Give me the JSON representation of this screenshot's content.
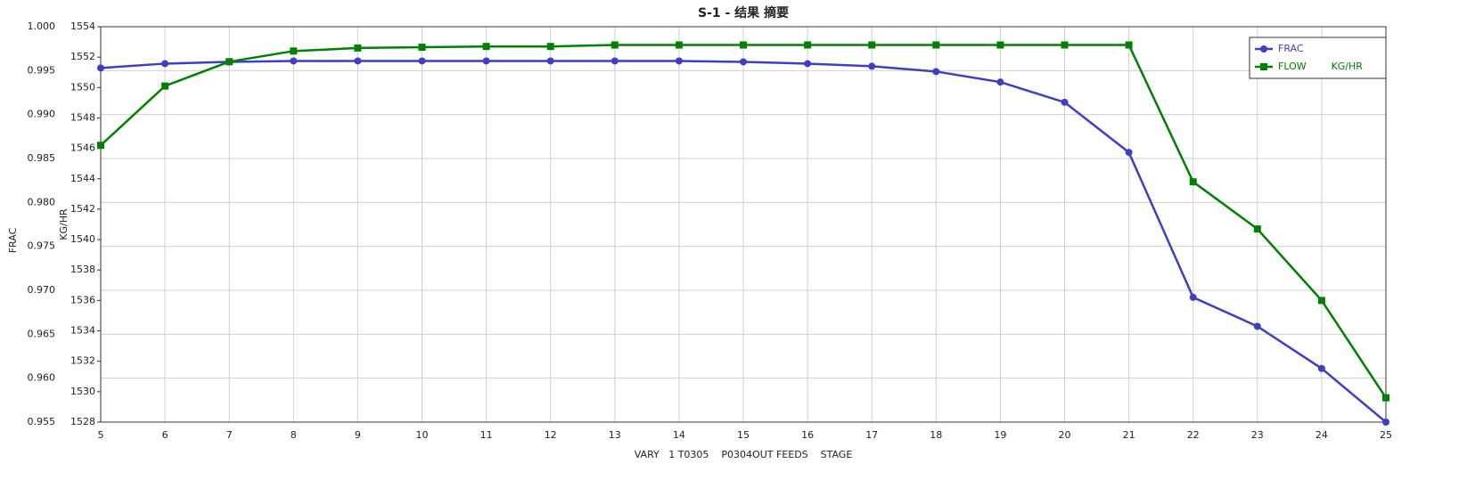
{
  "chart_data": {
    "type": "line",
    "title": "S-1 - 结果 摘要",
    "x_label": "VARY   1 T0305    P0304OUT FEEDS    STAGE",
    "y_label": "FRAC",
    "y2_label": "KG/HR",
    "x": [
      5,
      6,
      7,
      8,
      9,
      10,
      11,
      12,
      13,
      14,
      15,
      16,
      17,
      18,
      19,
      20,
      21,
      22,
      23,
      24,
      25
    ],
    "xlim": [
      5,
      25
    ],
    "xticks": [
      5,
      6,
      7,
      8,
      9,
      10,
      11,
      12,
      13,
      14,
      15,
      16,
      17,
      18,
      19,
      20,
      21,
      22,
      23,
      24,
      25
    ],
    "ylim": [
      0.955,
      1.0
    ],
    "yticks": [
      0.955,
      {
        "value": 0.96,
        "label": "0.960"
      },
      0.965,
      {
        "value": 0.97,
        "label": "0.970"
      },
      0.975,
      {
        "value": 0.98,
        "label": "0.980"
      },
      0.985,
      {
        "value": 0.99,
        "label": "0.990"
      },
      0.995,
      {
        "value": 1.0,
        "label": "1.000"
      }
    ],
    "y2lim": [
      1528,
      1554
    ],
    "y2ticks": [
      1528,
      1530,
      1532,
      1534,
      1536,
      1538,
      1540,
      1542,
      1544,
      1546,
      1548,
      1550,
      1552,
      1554
    ],
    "grid": true,
    "legend": "upper right",
    "series": [
      {
        "name": "FRAC",
        "color": "#3f3fbf",
        "marker": "circle",
        "values": [
          0.9953,
          0.9958,
          0.996,
          0.9961,
          0.9961,
          0.9961,
          0.9961,
          0.9961,
          0.9961,
          0.9961,
          0.996,
          0.9958,
          0.9955,
          0.9949,
          0.9937,
          0.9914,
          0.9857,
          0.9692,
          0.9659,
          0.9611,
          0.955
        ]
      },
      {
        "name": "FLOW        KG/HR",
        "color": "#008000",
        "marker": "square",
        "axis": "y2",
        "values": [
          1546.2,
          1550.1,
          1551.7,
          1552.4,
          1552.6,
          1552.65,
          1552.7,
          1552.7,
          1552.8,
          1552.8,
          1552.8,
          1552.8,
          1552.8,
          1552.8,
          1552.8,
          1552.8,
          1552.8,
          1543.8,
          1540.7,
          1536.0,
          1529.6
        ]
      }
    ]
  }
}
